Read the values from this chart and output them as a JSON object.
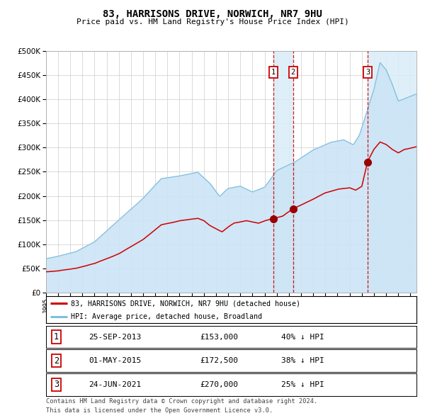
{
  "title": "83, HARRISONS DRIVE, NORWICH, NR7 9HU",
  "subtitle": "Price paid vs. HM Land Registry's House Price Index (HPI)",
  "legend_line1": "83, HARRISONS DRIVE, NORWICH, NR7 9HU (detached house)",
  "legend_line2": "HPI: Average price, detached house, Broadland",
  "footer_line1": "Contains HM Land Registry data © Crown copyright and database right 2024.",
  "footer_line2": "This data is licensed under the Open Government Licence v3.0.",
  "sales": [
    {
      "num": 1,
      "date_str": "25-SEP-2013",
      "date_decimal": 2013.73,
      "price": 153000,
      "price_str": "£153,000",
      "pct_str": "40% ↓ HPI"
    },
    {
      "num": 2,
      "date_str": "01-MAY-2015",
      "date_decimal": 2015.33,
      "price": 172500,
      "price_str": "£172,500",
      "pct_str": "38% ↓ HPI"
    },
    {
      "num": 3,
      "date_str": "24-JUN-2021",
      "date_decimal": 2021.48,
      "price": 270000,
      "price_str": "£270,000",
      "pct_str": "25% ↓ HPI"
    }
  ],
  "hpi_color": "#7fbfdf",
  "hpi_fill_color": "#cce4f5",
  "price_color": "#cc0000",
  "vline_color": "#cc0000",
  "dot_color": "#990000",
  "span_color": "#daedf8",
  "ylim": [
    0,
    500000
  ],
  "xlim_start": 1995.0,
  "xlim_end": 2025.5,
  "bg_color": "#ffffff",
  "grid_color": "#cccccc",
  "ytick_interval": 50000
}
